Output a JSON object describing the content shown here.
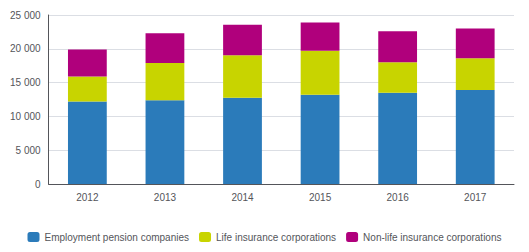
{
  "chart_data": {
    "type": "bar",
    "stacked": true,
    "categories": [
      "2012",
      "2013",
      "2014",
      "2015",
      "2016",
      "2017"
    ],
    "series": [
      {
        "name": "Employment pension companies",
        "color": "#2b7bba",
        "values": [
          12200,
          12400,
          12750,
          13200,
          13500,
          13900
        ]
      },
      {
        "name": "Life insurance corporations",
        "color": "#c8d400",
        "values": [
          3700,
          5500,
          6300,
          6500,
          4500,
          4700
        ]
      },
      {
        "name": "Non-life insurance corporations",
        "color": "#b0007c",
        "values": [
          4000,
          4400,
          4500,
          4200,
          4600,
          4400
        ]
      }
    ],
    "ylim": [
      0,
      25000
    ],
    "yticks": [
      0,
      {
        "value": 5000,
        "label": "5 000"
      },
      {
        "value": 10000,
        "label": "10 000"
      },
      {
        "value": 15000,
        "label": "15 000"
      },
      {
        "value": 20000,
        "label": "20 000"
      },
      {
        "value": 25000,
        "label": "25 000"
      }
    ],
    "grid": true,
    "legend": "bottom"
  }
}
